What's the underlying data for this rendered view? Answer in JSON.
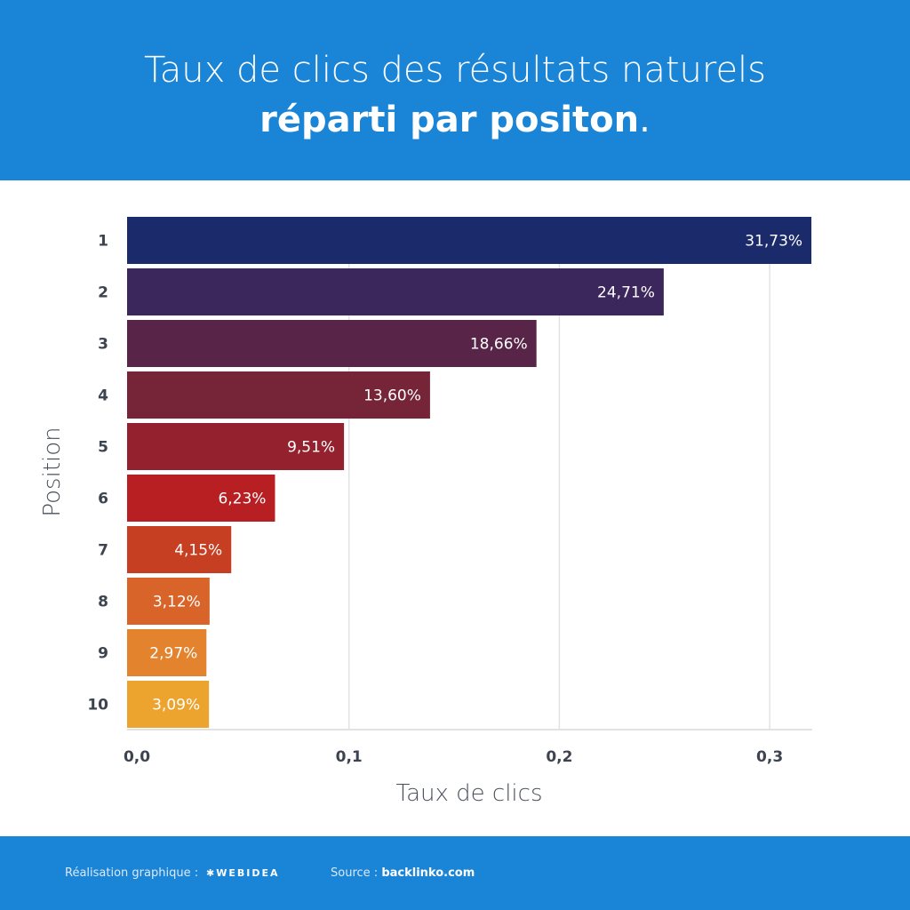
{
  "header": {
    "title_line1": "Taux de clics des résultats naturels",
    "title_line2_bold": "réparti par positon",
    "title_line2_tail": "."
  },
  "footer": {
    "credit_label": "Réalisation graphique :",
    "credit_logo": "WEBIDEA",
    "source_label": "Source :",
    "source_value": "backlinko.com"
  },
  "chart_data": {
    "type": "bar",
    "orientation": "horizontal",
    "categories": [
      "1",
      "2",
      "3",
      "4",
      "5",
      "6",
      "7",
      "8",
      "9",
      "10"
    ],
    "values": [
      0.3173,
      0.2471,
      0.1866,
      0.136,
      0.0951,
      0.0623,
      0.0415,
      0.0312,
      0.0297,
      0.0309
    ],
    "data_labels": [
      "31,73%",
      "24,71%",
      "18,66%",
      "13,60%",
      "9,51%",
      "6,23%",
      "4,15%",
      "3,12%",
      "2,97%",
      "3,09%"
    ],
    "colors": [
      "#1b2a6b",
      "#3c275c",
      "#582548",
      "#762438",
      "#93212e",
      "#b81f22",
      "#c73f22",
      "#d9642a",
      "#e3832d",
      "#eca42f"
    ],
    "xlabel": "Taux de clics",
    "ylabel": "Position",
    "xticks": [
      "0,0",
      "0,1",
      "0,2",
      "0,3"
    ],
    "xtick_values": [
      0,
      0.1,
      0.2,
      0.3
    ],
    "xlim": [
      0,
      0.32
    ],
    "grid": "vertical"
  }
}
